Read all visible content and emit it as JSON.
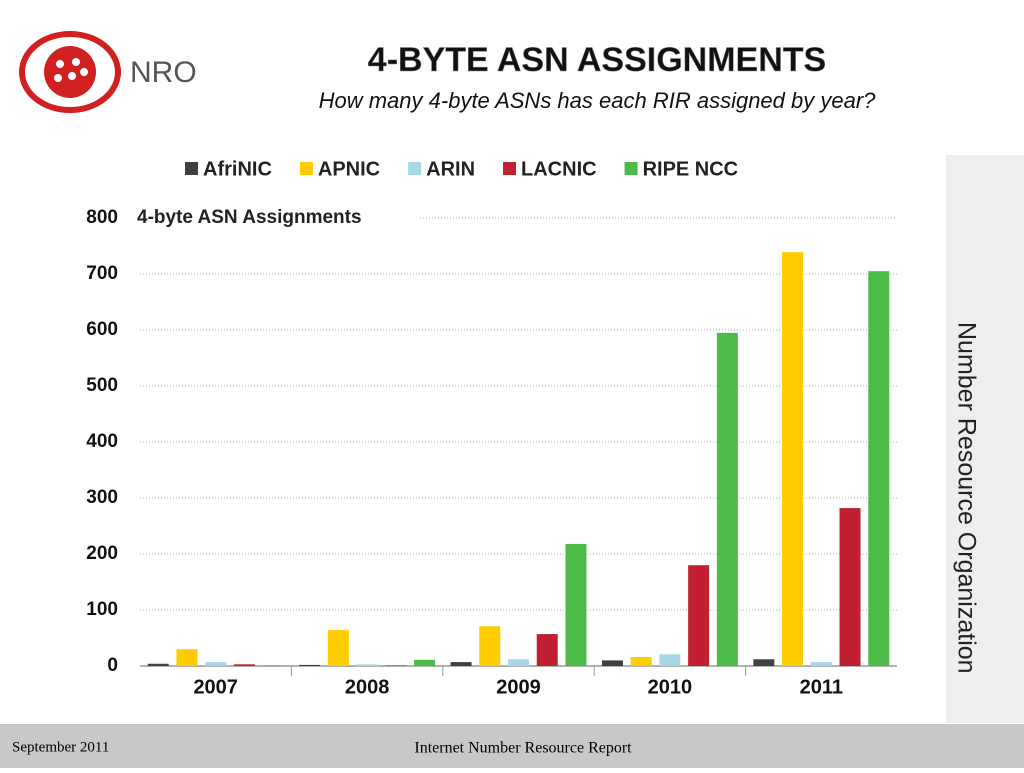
{
  "header": {
    "title": "4-BYTE ASN ASSIGNMENTS",
    "subtitle": "How many 4-byte ASNs has each RIR assigned by year?",
    "logo": "NRO"
  },
  "side_label": "Number Resource Organization",
  "footer": {
    "left": "September 2011",
    "center": "Internet Number Resource Report"
  },
  "chart_data": {
    "type": "bar",
    "title": "4-byte ASN Assignments",
    "categories": [
      "2007",
      "2008",
      "2009",
      "2010",
      "2011"
    ],
    "series": [
      {
        "name": "AfriNIC",
        "color": "#404040",
        "values": [
          4,
          2,
          7,
          10,
          12
        ]
      },
      {
        "name": "APNIC",
        "color": "#ffcc00",
        "values": [
          30,
          64,
          71,
          16,
          739
        ]
      },
      {
        "name": "ARIN",
        "color": "#a8d8e8",
        "values": [
          7,
          3,
          12,
          21,
          7
        ]
      },
      {
        "name": "LACNIC",
        "color": "#c0202f",
        "values": [
          3,
          1,
          57,
          180,
          282
        ]
      },
      {
        "name": "RIPE NCC",
        "color": "#4cbb47",
        "values": [
          1,
          11,
          218,
          595,
          705
        ]
      }
    ],
    "ylim": [
      0,
      800
    ],
    "yticks": [
      0,
      100,
      200,
      300,
      400,
      500,
      600,
      700,
      800
    ],
    "grid": true,
    "legend": "top"
  }
}
